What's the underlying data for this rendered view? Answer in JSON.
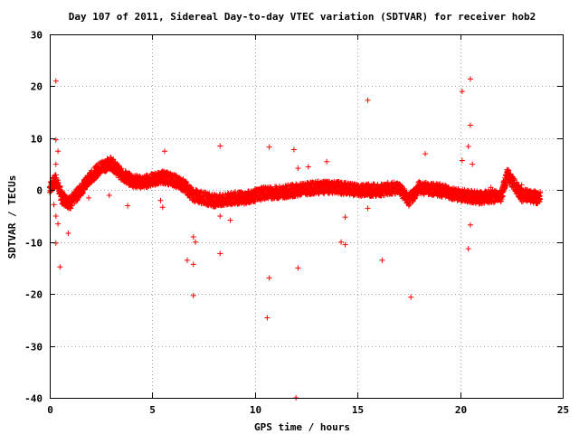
{
  "chart_data": {
    "type": "scatter",
    "title": "Day 107 of 2011, Sidereal Day-to-day VTEC variation (SDTVAR) for receiver hob2",
    "xlabel": "GPS time / hours",
    "ylabel": "SDTVAR / TECUs",
    "xlim": [
      0,
      25
    ],
    "ylim": [
      -40,
      30
    ],
    "xticks": [
      0,
      5,
      10,
      15,
      20,
      25
    ],
    "yticks": [
      -40,
      -30,
      -20,
      -10,
      0,
      10,
      20,
      30
    ],
    "grid": true,
    "marker": "plus",
    "color": "#ff0000",
    "trend": [
      {
        "x": 0.0,
        "y": 0.5
      },
      {
        "x": 0.3,
        "y": 2.0
      },
      {
        "x": 0.6,
        "y": -1.5
      },
      {
        "x": 1.0,
        "y": -2.5
      },
      {
        "x": 1.5,
        "y": 0.0
      },
      {
        "x": 2.0,
        "y": 2.5
      },
      {
        "x": 2.5,
        "y": 4.5
      },
      {
        "x": 3.0,
        "y": 5.2
      },
      {
        "x": 3.5,
        "y": 3.0
      },
      {
        "x": 4.0,
        "y": 1.8
      },
      {
        "x": 4.5,
        "y": 1.5
      },
      {
        "x": 5.0,
        "y": 2.0
      },
      {
        "x": 5.5,
        "y": 2.5
      },
      {
        "x": 6.0,
        "y": 2.0
      },
      {
        "x": 6.5,
        "y": 1.0
      },
      {
        "x": 7.0,
        "y": -1.0
      },
      {
        "x": 7.5,
        "y": -1.5
      },
      {
        "x": 8.0,
        "y": -2.0
      },
      {
        "x": 8.5,
        "y": -2.0
      },
      {
        "x": 9.0,
        "y": -1.5
      },
      {
        "x": 9.5,
        "y": -1.5
      },
      {
        "x": 10.0,
        "y": -1.0
      },
      {
        "x": 10.5,
        "y": -0.5
      },
      {
        "x": 11.0,
        "y": -0.5
      },
      {
        "x": 12.0,
        "y": 0.0
      },
      {
        "x": 13.0,
        "y": 0.5
      },
      {
        "x": 14.0,
        "y": 0.5
      },
      {
        "x": 15.0,
        "y": 0.0
      },
      {
        "x": 16.0,
        "y": 0.0
      },
      {
        "x": 17.0,
        "y": 0.5
      },
      {
        "x": 17.5,
        "y": -2.0
      },
      {
        "x": 18.0,
        "y": 0.5
      },
      {
        "x": 19.0,
        "y": 0.0
      },
      {
        "x": 20.0,
        "y": -1.0
      },
      {
        "x": 21.0,
        "y": -1.5
      },
      {
        "x": 22.0,
        "y": -1.0
      },
      {
        "x": 22.3,
        "y": 3.0
      },
      {
        "x": 23.0,
        "y": -1.0
      },
      {
        "x": 23.9,
        "y": -1.5
      }
    ],
    "outliers": [
      {
        "x": 0.3,
        "y": 21.0
      },
      {
        "x": 0.3,
        "y": 9.7
      },
      {
        "x": 0.4,
        "y": 7.5
      },
      {
        "x": 0.3,
        "y": 5.0
      },
      {
        "x": 0.3,
        "y": -5.0
      },
      {
        "x": 0.4,
        "y": -6.5
      },
      {
        "x": 0.3,
        "y": -10.2
      },
      {
        "x": 0.5,
        "y": -14.8
      },
      {
        "x": 0.9,
        "y": -8.3
      },
      {
        "x": 3.8,
        "y": -3.0
      },
      {
        "x": 5.4,
        "y": -2.0
      },
      {
        "x": 5.5,
        "y": -3.3
      },
      {
        "x": 5.6,
        "y": 7.5
      },
      {
        "x": 6.7,
        "y": -13.5
      },
      {
        "x": 7.0,
        "y": -14.3
      },
      {
        "x": 7.0,
        "y": -20.3
      },
      {
        "x": 7.0,
        "y": -9.0
      },
      {
        "x": 7.1,
        "y": -10.0
      },
      {
        "x": 8.3,
        "y": 8.5
      },
      {
        "x": 8.3,
        "y": -12.2
      },
      {
        "x": 8.3,
        "y": -5.0
      },
      {
        "x": 8.8,
        "y": -5.8
      },
      {
        "x": 10.6,
        "y": -24.6
      },
      {
        "x": 10.7,
        "y": -16.9
      },
      {
        "x": 10.7,
        "y": 8.3
      },
      {
        "x": 11.9,
        "y": 7.8
      },
      {
        "x": 12.0,
        "y": -40.0
      },
      {
        "x": 12.1,
        "y": -15.0
      },
      {
        "x": 12.1,
        "y": 4.2
      },
      {
        "x": 12.6,
        "y": 4.5
      },
      {
        "x": 13.5,
        "y": 5.5
      },
      {
        "x": 14.2,
        "y": -10.0
      },
      {
        "x": 14.4,
        "y": -10.5
      },
      {
        "x": 14.4,
        "y": -5.2
      },
      {
        "x": 15.5,
        "y": 17.3
      },
      {
        "x": 15.5,
        "y": -3.5
      },
      {
        "x": 16.2,
        "y": -13.5
      },
      {
        "x": 17.6,
        "y": -20.6
      },
      {
        "x": 18.3,
        "y": 7.0
      },
      {
        "x": 20.1,
        "y": 19.0
      },
      {
        "x": 20.5,
        "y": 21.4
      },
      {
        "x": 20.5,
        "y": 12.5
      },
      {
        "x": 20.4,
        "y": 8.4
      },
      {
        "x": 20.5,
        "y": -6.7
      },
      {
        "x": 20.4,
        "y": -11.3
      },
      {
        "x": 20.1,
        "y": 5.7
      },
      {
        "x": 20.6,
        "y": 5.0
      },
      {
        "x": 21.5,
        "y": 0.5
      },
      {
        "x": 23.0,
        "y": 1.0
      },
      {
        "x": 3.0,
        "y": 5.8
      },
      {
        "x": 2.9,
        "y": -1.0
      },
      {
        "x": 1.9,
        "y": -1.5
      },
      {
        "x": 0.2,
        "y": -2.8
      }
    ]
  }
}
